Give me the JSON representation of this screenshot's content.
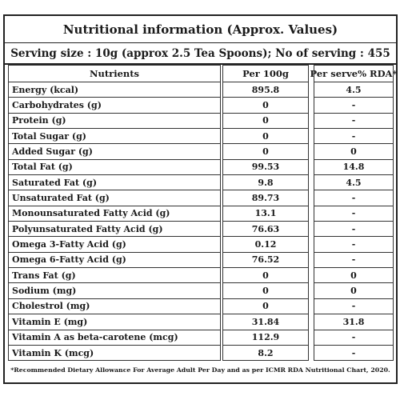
{
  "title": "Nutritional information (Approx. Values)",
  "serving": "Serving size : 10g (approx 2.5 Tea Spoons); No of serving : 455",
  "headers": {
    "nutrient": "Nutrients",
    "per100": "Per 100g",
    "perServe": "Per serve% RDA*"
  },
  "rows": [
    {
      "nutrient": "Energy (kcal)",
      "per100": "895.8",
      "perServe": "4.5"
    },
    {
      "nutrient": "Carbohydrates (g)",
      "per100": "0",
      "perServe": "-"
    },
    {
      "nutrient": "Protein (g)",
      "per100": "0",
      "perServe": "-"
    },
    {
      "nutrient": "Total Sugar (g)",
      "per100": "0",
      "perServe": "-"
    },
    {
      "nutrient": "Added Sugar (g)",
      "per100": "0",
      "perServe": "0"
    },
    {
      "nutrient": "Total Fat (g)",
      "per100": "99.53",
      "perServe": "14.8"
    },
    {
      "nutrient": "Saturated Fat (g)",
      "per100": "9.8",
      "perServe": "4.5"
    },
    {
      "nutrient": "Unsaturated Fat (g)",
      "per100": "89.73",
      "perServe": "-"
    },
    {
      "nutrient": "Monounsaturated Fatty Acid (g)",
      "per100": "13.1",
      "perServe": "-"
    },
    {
      "nutrient": "Polyunsaturated Fatty Acid (g)",
      "per100": "76.63",
      "perServe": "-"
    },
    {
      "nutrient": "Omega 3-Fatty Acid (g)",
      "per100": "0.12",
      "perServe": "-"
    },
    {
      "nutrient": "Omega 6-Fatty Acid (g)",
      "per100": "76.52",
      "perServe": "-"
    },
    {
      "nutrient": "Trans Fat (g)",
      "per100": "0",
      "perServe": "0"
    },
    {
      "nutrient": "Sodium (mg)",
      "per100": "0",
      "perServe": "0"
    },
    {
      "nutrient": "Cholestrol (mg)",
      "per100": "0",
      "perServe": "-"
    },
    {
      "nutrient": "Vitamin E (mg)",
      "per100": "31.84",
      "perServe": "31.8"
    },
    {
      "nutrient": "Vitamin A as beta-carotene (mcg)",
      "per100": "112.9",
      "perServe": "-"
    },
    {
      "nutrient": "Vitamin K (mcg)",
      "per100": "8.2",
      "perServe": "-"
    }
  ],
  "footnote": "*Recommended Dietary Allowance For Average Adult Per Day and as per ICMR RDA Nutritional Chart, 2020."
}
